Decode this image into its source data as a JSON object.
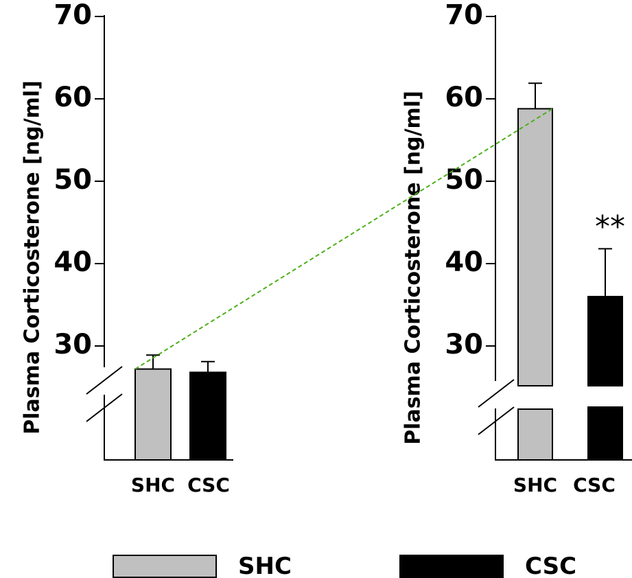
{
  "chart_data": [
    {
      "type": "bar",
      "ylabel": "Plasma Corticosterone [ng/ml]",
      "categories": [
        "SHC",
        "CSC"
      ],
      "values": [
        27.2,
        26.8
      ],
      "errors": [
        1.7,
        1.3
      ],
      "yticks": [
        "30",
        "40",
        "50",
        "60",
        "70"
      ],
      "ylim": [
        25,
        70
      ],
      "axis_break": true,
      "colors": [
        "#c0c0c0",
        "#000000"
      ]
    },
    {
      "type": "bar",
      "ylabel": "Plasma Corticosterone [ng/ml]",
      "categories": [
        "SHC",
        "CSC"
      ],
      "values": [
        58.8,
        36.0
      ],
      "errors": [
        3.1,
        5.8
      ],
      "yticks": [
        "30",
        "40",
        "50",
        "60",
        "70"
      ],
      "ylim": [
        25,
        70
      ],
      "axis_break": true,
      "annotation": "**",
      "colors": [
        "#c0c0c0",
        "#000000"
      ]
    }
  ],
  "legend": {
    "items": [
      {
        "label": "SHC",
        "color": "#c0c0c0"
      },
      {
        "label": "CSC",
        "color": "#000000"
      }
    ]
  },
  "connector_color": "#4caf1a"
}
